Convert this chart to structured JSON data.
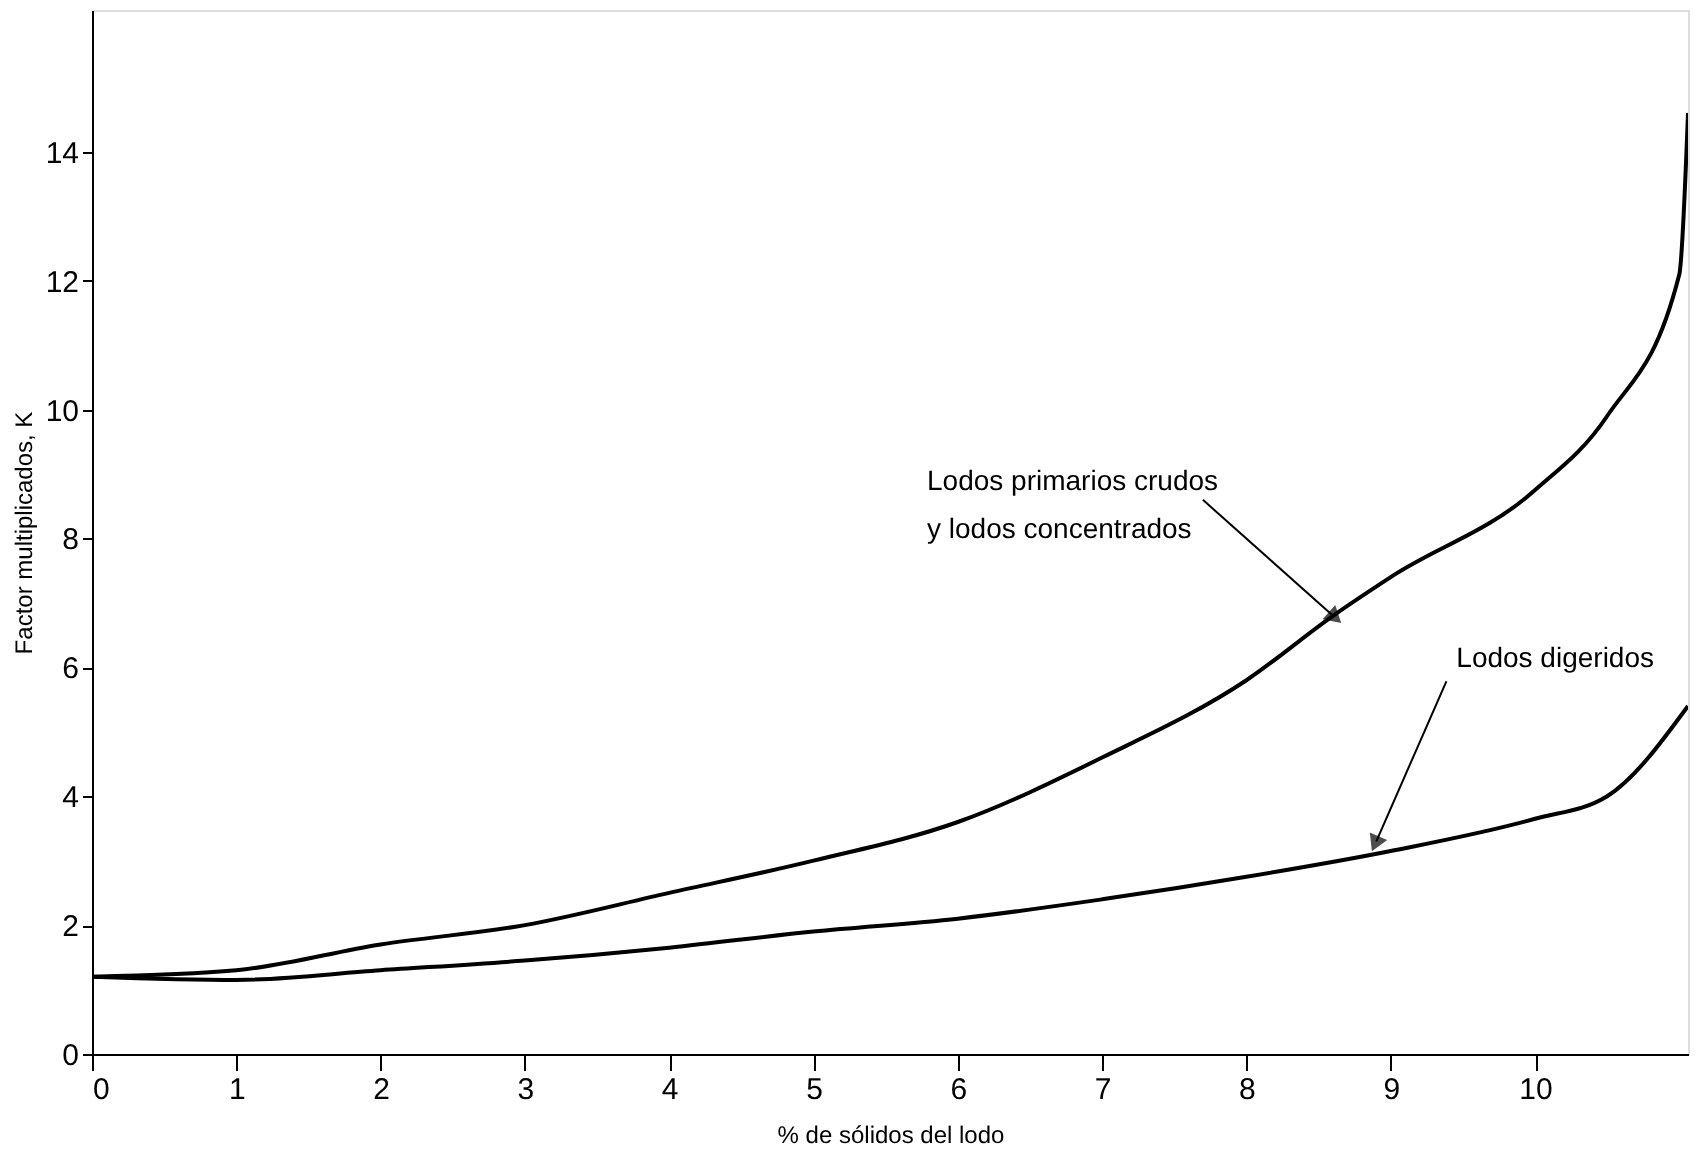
{
  "chart_data": {
    "type": "line",
    "xlabel": "% de sólidos del lodo",
    "ylabel": "Factor multiplicados, K",
    "xlim": [
      0,
      11.06
    ],
    "ylim": [
      0,
      16.2
    ],
    "xticks": [
      0,
      1,
      2,
      3,
      4,
      5,
      6,
      7,
      8,
      9,
      10
    ],
    "yticks": [
      0,
      2,
      4,
      6,
      8,
      10,
      12,
      14
    ],
    "grid": false,
    "marker": "none",
    "line_style": "solid",
    "series": [
      {
        "color": "#000000",
        "x": [
          0,
          1,
          2,
          3,
          4,
          5,
          6,
          7,
          8,
          8.6,
          9,
          10,
          10.5,
          11,
          11.06
        ],
        "values": [
          1.2,
          1.3,
          1.7,
          2.0,
          2.5,
          3.0,
          3.6,
          4.6,
          5.8,
          6.8,
          7.4,
          8.75,
          9.9,
          12.1,
          14.6
        ]
      },
      {
        "color": "#000000",
        "x": [
          0,
          1,
          2,
          3,
          4,
          5,
          6,
          7,
          8,
          9,
          10,
          10.5,
          11.06
        ],
        "values": [
          1.2,
          1.15,
          1.3,
          1.45,
          1.65,
          1.9,
          2.1,
          2.4,
          2.75,
          3.15,
          3.65,
          4.0,
          5.4
        ]
      }
    ],
    "annotations": [
      {
        "text": "Lodos primarios crudos\ny lodos concentrados",
        "x": 8.6,
        "y": 6.8
      },
      {
        "text": "Lodos digeridos",
        "x": 8.9,
        "y": 3.3
      }
    ]
  }
}
